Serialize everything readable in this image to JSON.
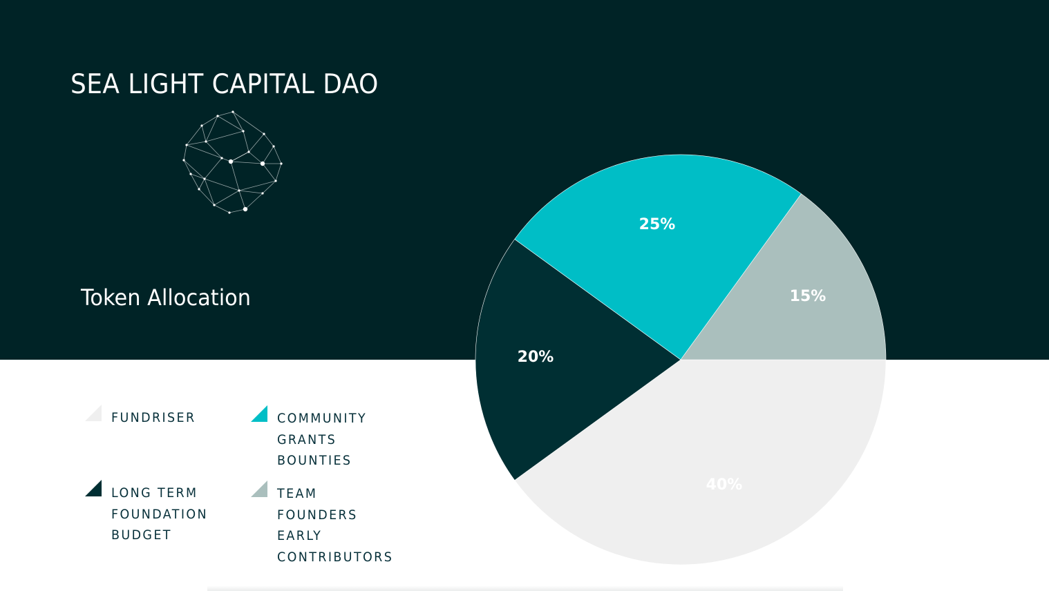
{
  "header": {
    "brand_title": "SEA LIGHT CAPITAL DAO",
    "section_title": "Token Allocation",
    "background_color": "#002326",
    "logo_icon": "network-globe-icon"
  },
  "chart_data": {
    "type": "pie",
    "title": "Token Allocation",
    "slices": [
      {
        "name": "FUNDRISER",
        "value": 40,
        "label": "40%",
        "color": "#efefef",
        "label_color": "#ffffff"
      },
      {
        "name": "LONG TERM FOUNDATION BUDGET",
        "value": 20,
        "label": "20%",
        "color": "#002f33",
        "label_color": "#ffffff"
      },
      {
        "name": "COMMUNITY GRANTS BOUNTIES",
        "value": 25,
        "label": "25%",
        "color": "#00bec6",
        "label_color": "#ffffff"
      },
      {
        "name": "TEAM FOUNDERS EARLY CONTRIBUTORS",
        "value": 15,
        "label": "15%",
        "color": "#aabfbd",
        "label_color": "#ffffff"
      }
    ],
    "legend_placement": "bottom-left"
  },
  "legend": [
    {
      "lines": [
        "FUNDRISER"
      ],
      "color": "#efefef"
    },
    {
      "lines": [
        "COMMUNITY",
        "GRANTS",
        "BOUNTIES"
      ],
      "color": "#00bec6"
    },
    {
      "lines": [
        "LONG TERM",
        "FOUNDATION",
        "BUDGET"
      ],
      "color": "#002f33"
    },
    {
      "lines": [
        "TEAM",
        "FOUNDERS",
        "EARLY",
        "CONTRIBUTORS"
      ],
      "color": "#aabfbd"
    }
  ]
}
